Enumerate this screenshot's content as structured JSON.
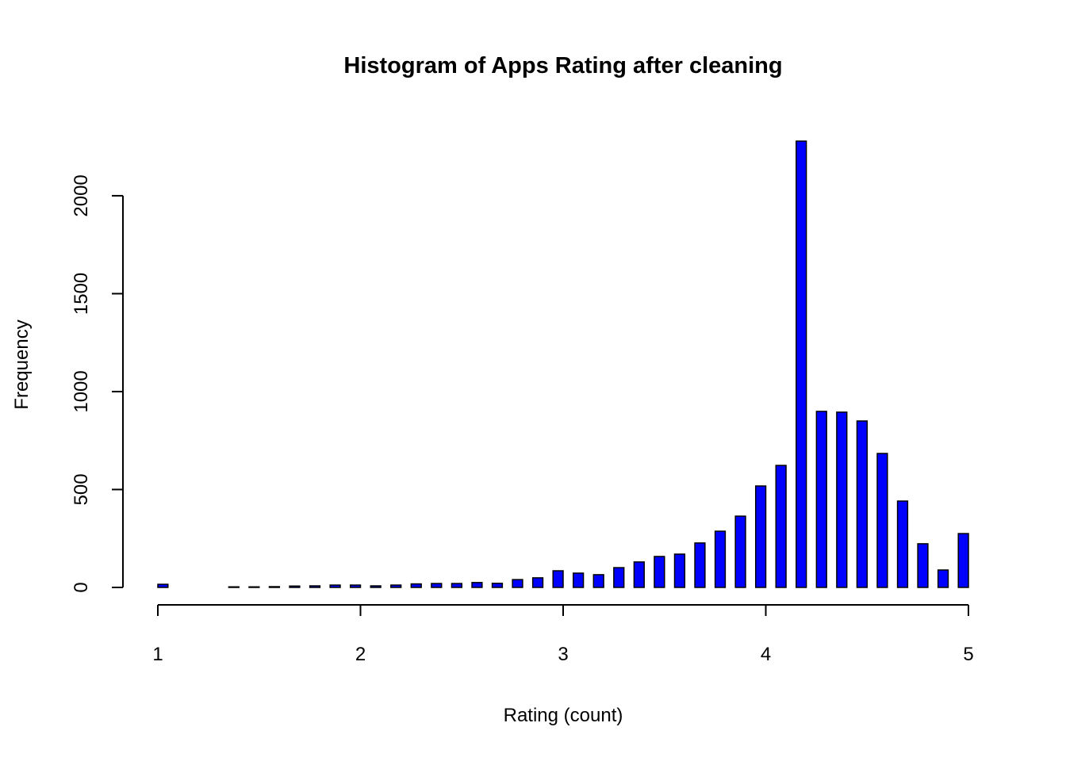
{
  "chart_data": {
    "type": "histogram",
    "title": "Histogram of Apps Rating after cleaning",
    "x_label": "Rating (count)",
    "y_label": "Frequency",
    "color": "#0000ff",
    "bins": [
      1,
      1.05,
      1.1,
      1.15,
      1.2,
      1.25,
      1.3,
      1.35,
      1.4,
      1.45,
      1.5,
      1.55,
      1.6,
      1.65,
      1.7,
      1.75,
      1.8,
      1.85,
      1.9,
      1.95,
      2,
      2.05,
      2.1,
      2.15,
      2.2,
      2.25,
      2.3,
      2.35,
      2.4,
      2.45,
      2.5,
      2.55,
      2.6,
      2.65,
      2.7,
      2.75,
      2.8,
      2.85,
      2.9,
      2.95,
      3,
      3.05,
      3.1,
      3.15,
      3.2,
      3.25,
      3.3,
      3.35,
      3.4,
      3.45,
      3.5,
      3.55,
      3.6,
      3.65,
      3.7,
      3.75,
      3.8,
      3.85,
      3.9,
      3.95,
      4,
      4.05,
      4.1,
      4.15,
      4.2,
      4.25,
      4.3,
      4.35,
      4.4,
      4.45,
      4.5,
      4.55,
      4.6,
      4.65,
      4.7,
      4.75,
      4.8,
      4.85,
      4.9,
      4.95,
      5
    ],
    "counts": [
      16,
      0,
      0,
      0,
      0,
      0,
      0,
      3,
      0,
      3,
      0,
      4,
      0,
      7,
      0,
      8,
      0,
      12,
      0,
      12,
      0,
      8,
      0,
      12,
      0,
      18,
      0,
      20,
      0,
      20,
      0,
      25,
      0,
      21,
      0,
      40,
      0,
      49,
      0,
      85,
      0,
      73,
      0,
      65,
      0,
      101,
      0,
      130,
      0,
      158,
      0,
      170,
      0,
      227,
      0,
      287,
      0,
      364,
      0,
      518,
      0,
      623,
      0,
      2279,
      0,
      899,
      0,
      895,
      0,
      850,
      0,
      684,
      0,
      441,
      0,
      223,
      0,
      89,
      0,
      275
    ],
    "xlim": [
      1,
      5
    ],
    "ylim": [
      0,
      2279
    ],
    "xticks": [
      1,
      2,
      3,
      4,
      5
    ],
    "yticks": [
      0,
      500,
      1000,
      1500,
      2000
    ]
  }
}
